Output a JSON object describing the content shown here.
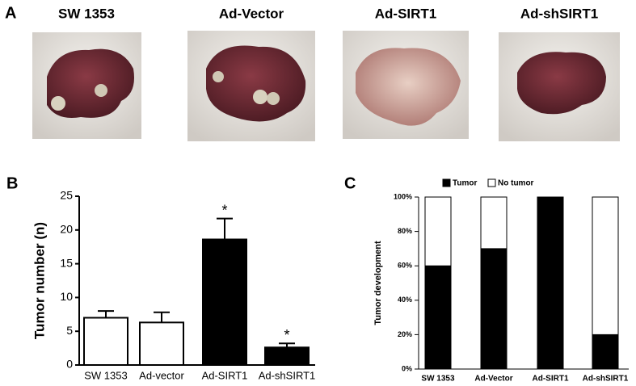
{
  "panel_a": {
    "label": "A",
    "captions": [
      "SW 1353",
      "Ad-Vector",
      "Ad-SIRT1",
      "Ad-shSIRT1"
    ]
  },
  "chart_data": [
    {
      "type": "bar",
      "panel_label": "B",
      "y_label": "Tumor number (n)",
      "categories": [
        "SW 1353",
        "Ad-vector",
        "Ad-SIRT1",
        "Ad-shSIRT1"
      ],
      "values": [
        7.0,
        6.3,
        18.6,
        2.6
      ],
      "errors": [
        1.0,
        1.5,
        3.1,
        0.6
      ],
      "colors": [
        "#ffffff",
        "#ffffff",
        "#000000",
        "#000000"
      ],
      "significance": [
        null,
        null,
        "*",
        "*"
      ],
      "ylim": [
        0,
        25
      ],
      "yticks": [
        0,
        5,
        10,
        15,
        20,
        25
      ]
    },
    {
      "type": "stacked_bar",
      "panel_label": "C",
      "y_label": "Tumor development",
      "categories": [
        "SW 1353",
        "Ad-Vector",
        "Ad-SIRT1",
        "Ad-shSIRT1"
      ],
      "series": [
        {
          "name": "Tumor",
          "color": "#000000",
          "values": [
            60,
            70,
            100,
            20
          ]
        },
        {
          "name": "No tumor",
          "color": "#ffffff",
          "values": [
            40,
            30,
            0,
            80
          ]
        }
      ],
      "ylim": [
        0,
        100
      ],
      "yticks": [
        {
          "value": 0,
          "label": "0%"
        },
        {
          "value": 20,
          "label": "20%"
        },
        {
          "value": 40,
          "label": "40%"
        },
        {
          "value": 60,
          "label": "60%"
        },
        {
          "value": 80,
          "label": "80%"
        },
        {
          "value": 100,
          "label": "100%"
        }
      ],
      "legend": "top"
    }
  ]
}
